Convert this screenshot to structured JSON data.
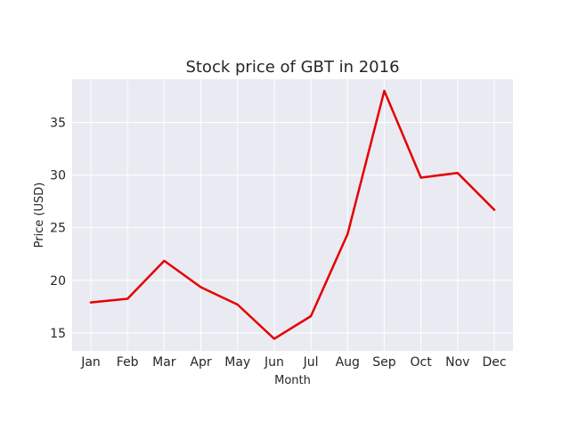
{
  "chart_data": {
    "type": "line",
    "title": "Stock price of GBT in 2016",
    "xlabel": "Month",
    "ylabel": "Price (USD)",
    "categories": [
      "Jan",
      "Feb",
      "Mar",
      "Apr",
      "May",
      "Jun",
      "Jul",
      "Aug",
      "Sep",
      "Oct",
      "Nov",
      "Dec"
    ],
    "series": [
      {
        "color": "#e50000",
        "values": [
          17.9,
          18.25,
          21.85,
          19.35,
          17.7,
          14.45,
          16.6,
          24.4,
          38.0,
          29.75,
          30.2,
          26.7
        ]
      }
    ],
    "ylim": [
      13.3,
      39.1
    ],
    "yticks": [
      15,
      20,
      25,
      30,
      35
    ],
    "grid": true,
    "legend": "none",
    "colors": {
      "background": "#eaeaf2",
      "grid": "#ffffff",
      "line": "#e50000",
      "text": "#262626"
    }
  }
}
